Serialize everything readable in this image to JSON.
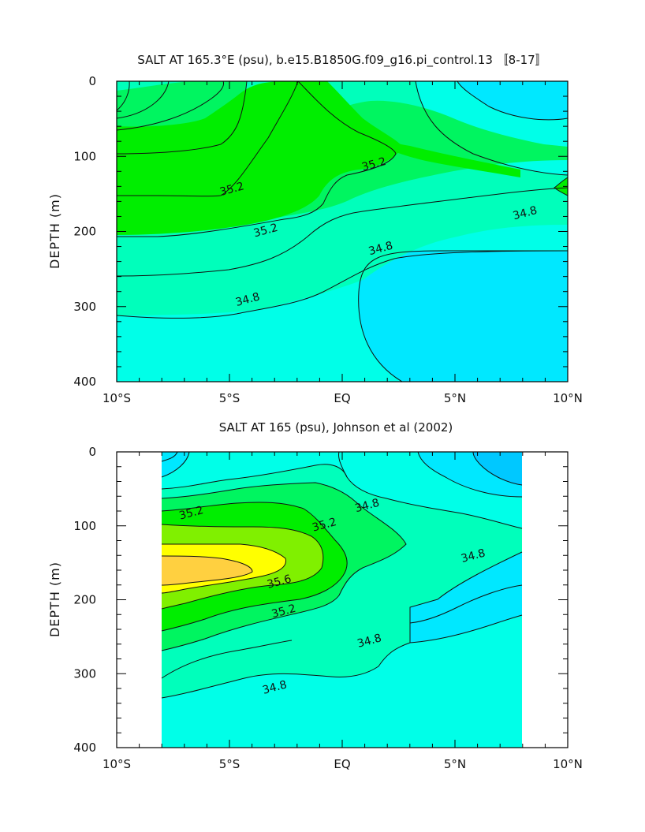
{
  "chart_data": [
    {
      "type": "contour",
      "title": "SALT AT 165.3°E (psu), b.e15.B1850G.f09_g16.pi_control.13 〚8-17〛",
      "xlabel": "",
      "ylabel": "DEPTH (m)",
      "x_tick_labels": [
        "10°S",
        "5°S",
        "EQ",
        "5°N",
        "10°N"
      ],
      "x_ticks": [
        -10,
        -5,
        0,
        5,
        10
      ],
      "y_tick_labels": [
        "0",
        "100",
        "200",
        "300",
        "400"
      ],
      "y_ticks": [
        0,
        100,
        200,
        300,
        400
      ],
      "xlim": [
        -10,
        10
      ],
      "ylim": [
        400,
        0
      ],
      "y_inverted": true,
      "data_extent_x": [
        -10,
        10
      ],
      "contour_levels": [
        34.4,
        34.6,
        34.8,
        35.0,
        35.2,
        35.4,
        35.6
      ],
      "labeled_contours": [
        {
          "level": "35.2",
          "lat": -4.9,
          "depth": 143
        },
        {
          "level": "35.2",
          "lat": 1.4,
          "depth": 110
        },
        {
          "level": "35.2",
          "lat": -3.4,
          "depth": 198
        },
        {
          "level": "34.8",
          "lat": 8.1,
          "depth": 175
        },
        {
          "level": "34.8",
          "lat": 1.7,
          "depth": 222
        },
        {
          "level": "34.8",
          "lat": -4.2,
          "depth": 290
        }
      ],
      "fill_colors": {
        "34.4": "#00e8ff",
        "34.6": "#00ffe8",
        "34.8": "#00ffbb",
        "35.0": "#00f560",
        "35.2": "#00ee00"
      }
    },
    {
      "type": "contour",
      "title": "SALT AT 165 (psu), Johnson et al (2002)",
      "xlabel": "",
      "ylabel": "DEPTH (m)",
      "x_tick_labels": [
        "10°S",
        "5°S",
        "EQ",
        "5°N",
        "10°N"
      ],
      "x_ticks": [
        -10,
        -5,
        0,
        5,
        10
      ],
      "y_tick_labels": [
        "0",
        "100",
        "200",
        "300",
        "400"
      ],
      "y_ticks": [
        0,
        100,
        200,
        300,
        400
      ],
      "xlim": [
        -10,
        10
      ],
      "ylim": [
        400,
        0
      ],
      "y_inverted": true,
      "data_extent_x": [
        -8,
        8
      ],
      "contour_levels": [
        34.4,
        34.6,
        34.8,
        35.0,
        35.2,
        35.4,
        35.6,
        35.8
      ],
      "labeled_contours": [
        {
          "level": "35.2",
          "lat": -6.7,
          "depth": 82
        },
        {
          "level": "35.2",
          "lat": -0.8,
          "depth": 98
        },
        {
          "level": "35.6",
          "lat": -2.8,
          "depth": 175
        },
        {
          "level": "35.2",
          "lat": -2.6,
          "depth": 215
        },
        {
          "level": "34.8",
          "lat": 1.1,
          "depth": 72
        },
        {
          "level": "34.8",
          "lat": 5.8,
          "depth": 140
        },
        {
          "level": "34.8",
          "lat": 1.2,
          "depth": 255
        },
        {
          "level": "34.8",
          "lat": -3.0,
          "depth": 318
        }
      ],
      "fill_colors": {
        "34.2": "#00c8ff",
        "34.4": "#00e8ff",
        "34.6": "#00ffe8",
        "34.8": "#00ffbb",
        "35.0": "#00f560",
        "35.2": "#00ee00",
        "35.4": "#80f000",
        "35.6": "#ffff00",
        "35.8": "#ffd040"
      }
    }
  ]
}
